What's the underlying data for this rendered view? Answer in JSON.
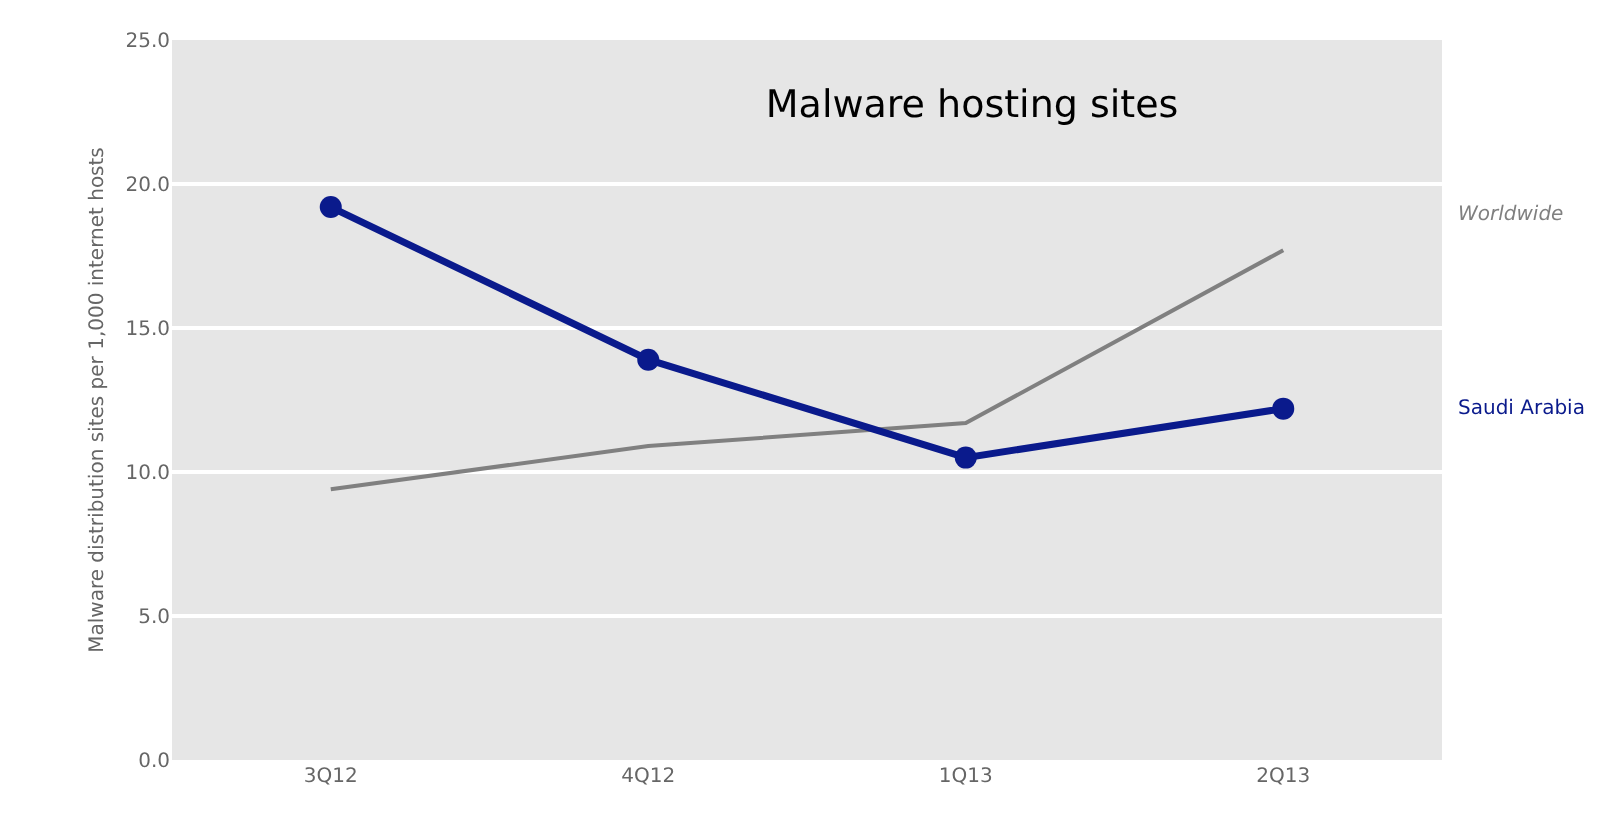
{
  "chart_data": {
    "type": "line",
    "title": "Malware hosting sites",
    "ylabel": "Malware distribution sites per 1,000 internet hosts",
    "categories": [
      "3Q12",
      "4Q12",
      "1Q13",
      "2Q13"
    ],
    "series": [
      {
        "name": "Worldwide",
        "color": "#808080",
        "values": [
          9.4,
          10.9,
          11.7,
          17.7
        ],
        "marker": "none"
      },
      {
        "name": "Saudi Arabia",
        "color": "#0a1a8c",
        "values": [
          19.2,
          13.9,
          10.5,
          12.2
        ],
        "marker": "circle"
      }
    ],
    "ylim": [
      0,
      25
    ],
    "yticks": [
      {
        "value": 0,
        "label": "0.0"
      },
      {
        "value": 5,
        "label": "5.0"
      },
      {
        "value": 10,
        "label": "10.0"
      },
      {
        "value": 15,
        "label": "15.0"
      },
      {
        "value": 20,
        "label": "20.0"
      },
      {
        "value": 25,
        "label": "25.0"
      }
    ],
    "grid": "y",
    "legend": false,
    "line_style": "solid"
  }
}
